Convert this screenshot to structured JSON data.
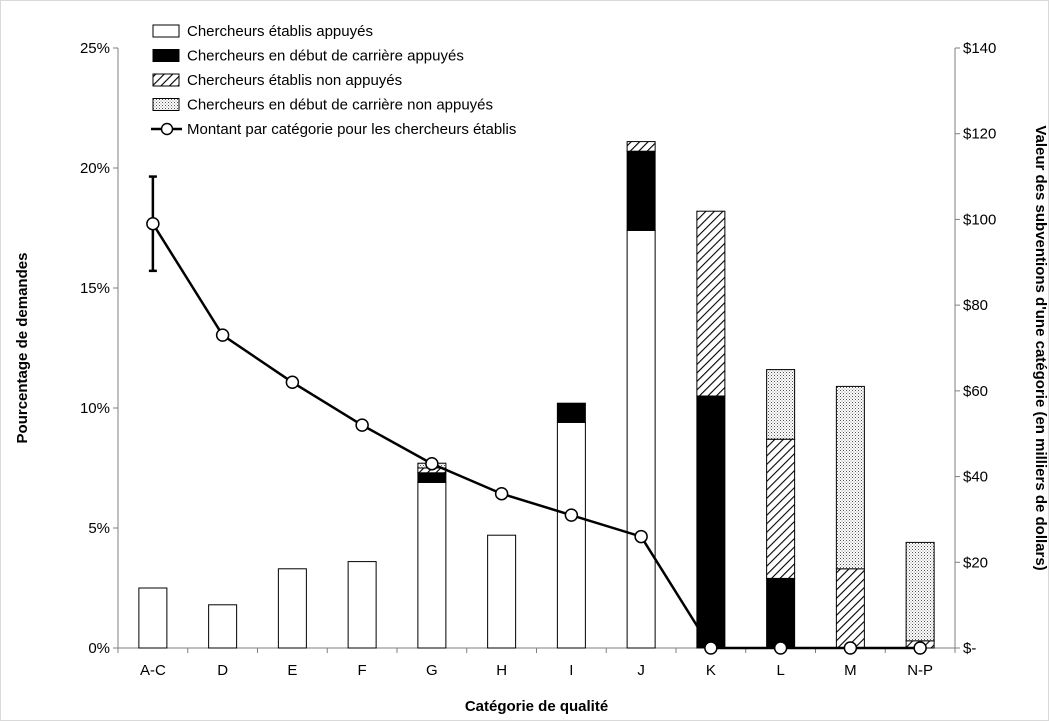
{
  "chart_data": {
    "type": "bar",
    "stacked": true,
    "categories": [
      "A-C",
      "D",
      "E",
      "F",
      "G",
      "H",
      "I",
      "J",
      "K",
      "L",
      "M",
      "N-P"
    ],
    "xlabel": "Catégorie de qualité",
    "ylabel": "Pourcentage de demandes",
    "y2label": "Valeur des subventions d'une catégorie (en milliers de dollars)",
    "ylim": [
      0,
      25
    ],
    "y2lim": [
      0,
      140
    ],
    "yticks": [
      "0%",
      "5%",
      "10%",
      "15%",
      "20%",
      "25%"
    ],
    "y2ticks": [
      "$-",
      "$20",
      "$40",
      "$60",
      "$80",
      "$100",
      "$120",
      "$140"
    ],
    "series": [
      {
        "name": "Chercheurs établis appuyés",
        "pattern": "white",
        "values": [
          2.5,
          1.8,
          3.3,
          3.6,
          6.9,
          4.7,
          9.4,
          17.4,
          0,
          0,
          0,
          0
        ]
      },
      {
        "name": "Chercheurs en début de carrière appuyés",
        "pattern": "black",
        "values": [
          0,
          0,
          0,
          0,
          0.4,
          0,
          0.8,
          3.3,
          10.5,
          2.9,
          0,
          0
        ]
      },
      {
        "name": "Chercheurs établis non appuyés",
        "pattern": "hatch",
        "values": [
          0,
          0,
          0,
          0,
          0.2,
          0,
          0,
          0.4,
          7.7,
          5.8,
          3.3,
          0.3
        ]
      },
      {
        "name": "Chercheurs en début de carrière non appuyés",
        "pattern": "dots",
        "values": [
          0,
          0,
          0,
          0,
          0.2,
          0,
          0,
          0,
          0,
          2.9,
          7.6,
          4.1
        ]
      }
    ],
    "line": {
      "name": "Montant par catégorie pour les chercheurs établis",
      "axis": "right",
      "values": [
        99,
        73,
        62,
        52,
        43,
        36,
        31,
        26,
        0,
        0,
        0,
        0
      ],
      "error_bar": {
        "category": "A-C",
        "low": 88,
        "high": 110
      }
    },
    "legend_position": "top-center",
    "grid": false
  },
  "colors": {
    "bar_stroke": "#000000",
    "line": "#000000",
    "marker_fill": "#ffffff",
    "axis": "#7f7f7f"
  }
}
